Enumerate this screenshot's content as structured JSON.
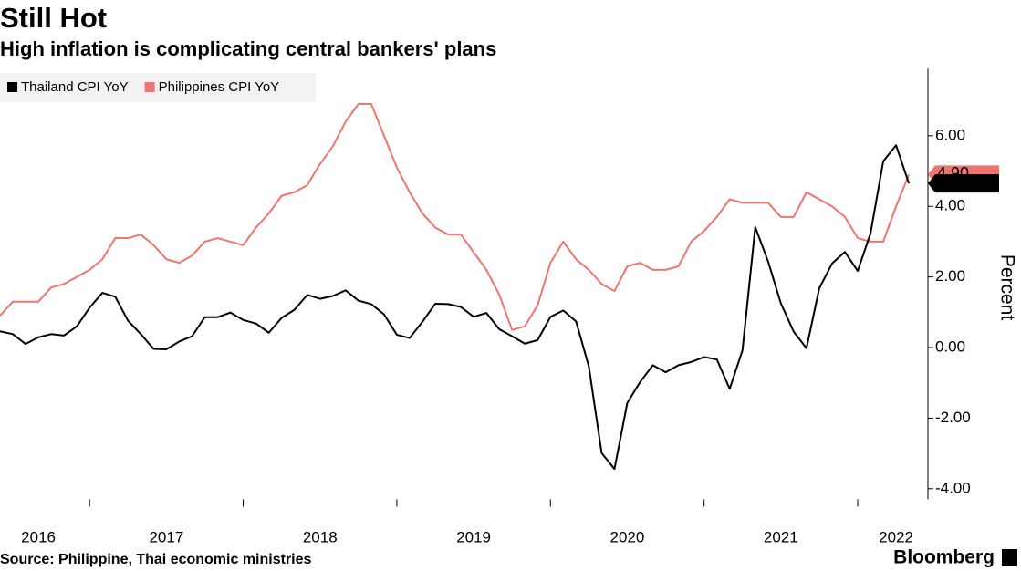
{
  "chart_data": {
    "type": "line",
    "title": "Still Hot",
    "subtitle": "High inflation is complicating central bankers' plans",
    "source": "Source: Philippine, Thai economic ministries",
    "brand": "Bloomberg",
    "y_label": "Percent",
    "categories": [
      null,
      null,
      null,
      "2016",
      null,
      null,
      null,
      null,
      null,
      null,
      null,
      null,
      null,
      "2017",
      null,
      null,
      null,
      null,
      null,
      null,
      null,
      null,
      null,
      null,
      null,
      "2018",
      null,
      null,
      null,
      null,
      null,
      null,
      null,
      null,
      null,
      null,
      null,
      "2019",
      null,
      null,
      null,
      null,
      null,
      null,
      null,
      null,
      null,
      null,
      null,
      "2020",
      null,
      null,
      null,
      null,
      null,
      null,
      null,
      null,
      null,
      null,
      null,
      "2021",
      null,
      null,
      null,
      null,
      null,
      null,
      null,
      null,
      "2022",
      null
    ],
    "series": [
      {
        "name": "Thailand CPI YoY",
        "color": "#000000",
        "values": [
          0.46,
          0.38,
          0.1,
          0.29,
          0.38,
          0.34,
          0.6,
          1.13,
          1.55,
          1.44,
          0.76,
          0.38,
          -0.04,
          -0.05,
          0.17,
          0.32,
          0.86,
          0.86,
          0.99,
          0.78,
          0.68,
          0.42,
          0.84,
          1.07,
          1.49,
          1.38,
          1.46,
          1.62,
          1.33,
          1.23,
          0.94,
          0.36,
          0.27,
          0.73,
          1.24,
          1.23,
          1.15,
          0.87,
          0.98,
          0.52,
          0.32,
          0.11,
          0.21,
          0.87,
          1.05,
          0.74,
          -0.54,
          -2.99,
          -3.44,
          -1.57,
          -0.98,
          -0.5,
          -0.7,
          -0.5,
          -0.41,
          -0.27,
          -0.34,
          -1.17,
          -0.08,
          3.41,
          2.44,
          1.25,
          0.45,
          -0.02,
          1.68,
          2.38,
          2.71,
          2.17,
          3.23,
          5.28,
          5.73,
          4.65
        ]
      },
      {
        "name": "Philippines CPI YoY",
        "color": "#f07470",
        "values": [
          0.9,
          1.3,
          1.3,
          1.3,
          1.7,
          1.8,
          2.0,
          2.2,
          2.5,
          3.1,
          3.1,
          3.2,
          2.9,
          2.5,
          2.4,
          2.6,
          3.0,
          3.1,
          3.0,
          2.9,
          3.4,
          3.8,
          4.3,
          4.4,
          4.6,
          5.2,
          5.7,
          6.4,
          6.9,
          6.9,
          6.0,
          5.1,
          4.4,
          3.8,
          3.4,
          3.2,
          3.2,
          2.7,
          2.2,
          1.5,
          0.5,
          0.6,
          1.2,
          2.4,
          3.0,
          2.5,
          2.2,
          1.8,
          1.6,
          2.3,
          2.4,
          2.2,
          2.2,
          2.3,
          3.0,
          3.3,
          3.7,
          4.2,
          4.1,
          4.1,
          4.1,
          3.7,
          3.7,
          4.4,
          4.2,
          4.0,
          3.7,
          3.1,
          3.0,
          3.0,
          4.0,
          4.9
        ],
        "value_labels": [
          null,
          null,
          null,
          null,
          null,
          null,
          null,
          null,
          null,
          null,
          null,
          null,
          null,
          null,
          null,
          null,
          null,
          null,
          null,
          null,
          null,
          null,
          null,
          null,
          null,
          null,
          null,
          null,
          null,
          null,
          null,
          null,
          null,
          null,
          null,
          null,
          null,
          null,
          null,
          null,
          null,
          null,
          null,
          null,
          null,
          null,
          null,
          null,
          null,
          null,
          null,
          null,
          null,
          null,
          null,
          null,
          null,
          null,
          null,
          null,
          null,
          null,
          null,
          null,
          null,
          null,
          null,
          null,
          null,
          null,
          null,
          "4.90"
        ]
      }
    ],
    "ylim": [
      -4.3,
      7.9
    ],
    "yticks": [
      {
        "value": -4,
        "label": "-4.00"
      },
      {
        "value": -2,
        "label": "-2.00"
      },
      {
        "value": 0,
        "label": "0.00"
      },
      {
        "value": 2,
        "label": "2.00"
      },
      {
        "value": 4,
        "label": "4.00"
      },
      {
        "value": 6,
        "label": "6.00"
      }
    ],
    "grid": false,
    "legend": "top-left"
  }
}
